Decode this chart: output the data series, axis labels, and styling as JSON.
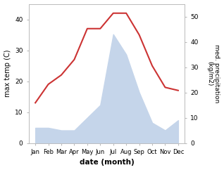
{
  "months": [
    "Jan",
    "Feb",
    "Mar",
    "Apr",
    "May",
    "Jun",
    "Jul",
    "Aug",
    "Sep",
    "Oct",
    "Nov",
    "Dec"
  ],
  "temperature": [
    13,
    19,
    22,
    27,
    37,
    37,
    42,
    42,
    35,
    25,
    18,
    17
  ],
  "precipitation": [
    6,
    6,
    5,
    5,
    10,
    15,
    43,
    35,
    20,
    8,
    5,
    9
  ],
  "temp_color": "#cc3333",
  "precip_fill_color": "#c5d5ea",
  "ylim_temp": [
    0,
    45
  ],
  "ylim_precip": [
    0,
    55
  ],
  "ylabel_left": "max temp (C)",
  "ylabel_right": "med. precipitation\n(kg/m2)",
  "xlabel": "date (month)",
  "temp_yticks": [
    0,
    10,
    20,
    30,
    40
  ],
  "precip_yticks": [
    0,
    10,
    20,
    30,
    40,
    50
  ],
  "background_color": "#ffffff",
  "spine_color": "#bbbbbb"
}
